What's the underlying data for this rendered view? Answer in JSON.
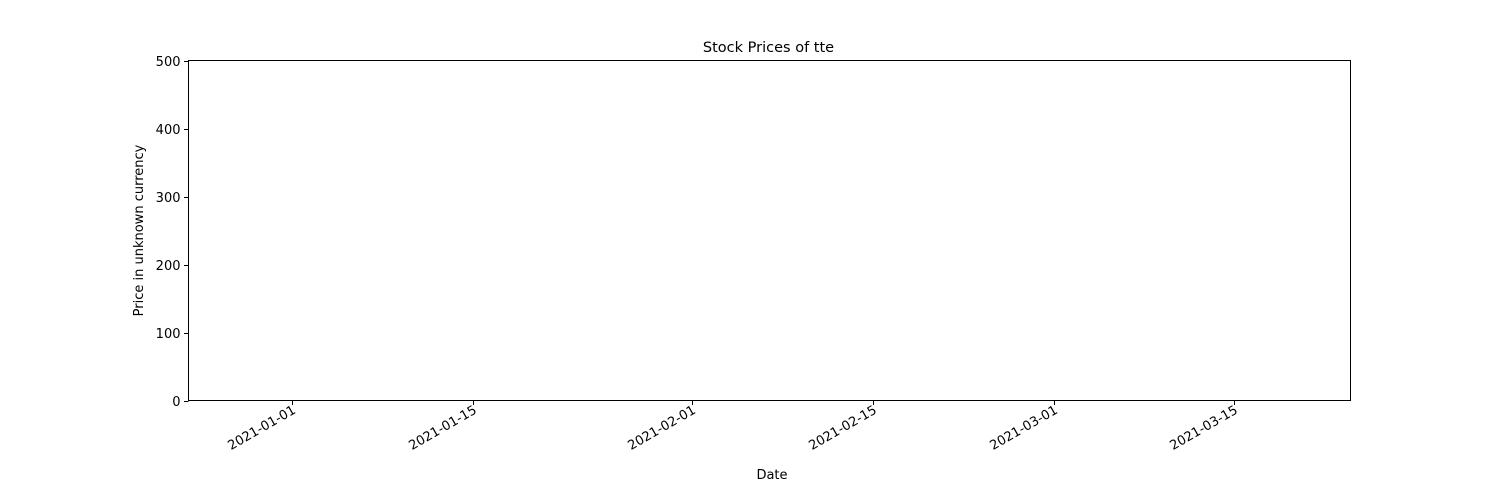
{
  "chart_data": {
    "type": "line",
    "title": "Stock Prices of tte",
    "xlabel": "Date",
    "ylabel": "Price in unknown currency",
    "x_type": "date",
    "xlim": [
      "2020-12-24",
      "2021-03-24"
    ],
    "ylim": [
      0,
      500
    ],
    "x_ticks": [
      "2021-01-01",
      "2021-01-15",
      "2021-02-01",
      "2021-02-15",
      "2021-03-01",
      "2021-03-15"
    ],
    "y_ticks": [
      0,
      100,
      200,
      300,
      400,
      500
    ],
    "series": [
      {
        "x": [],
        "values": []
      }
    ],
    "grid": false,
    "legend": false
  }
}
